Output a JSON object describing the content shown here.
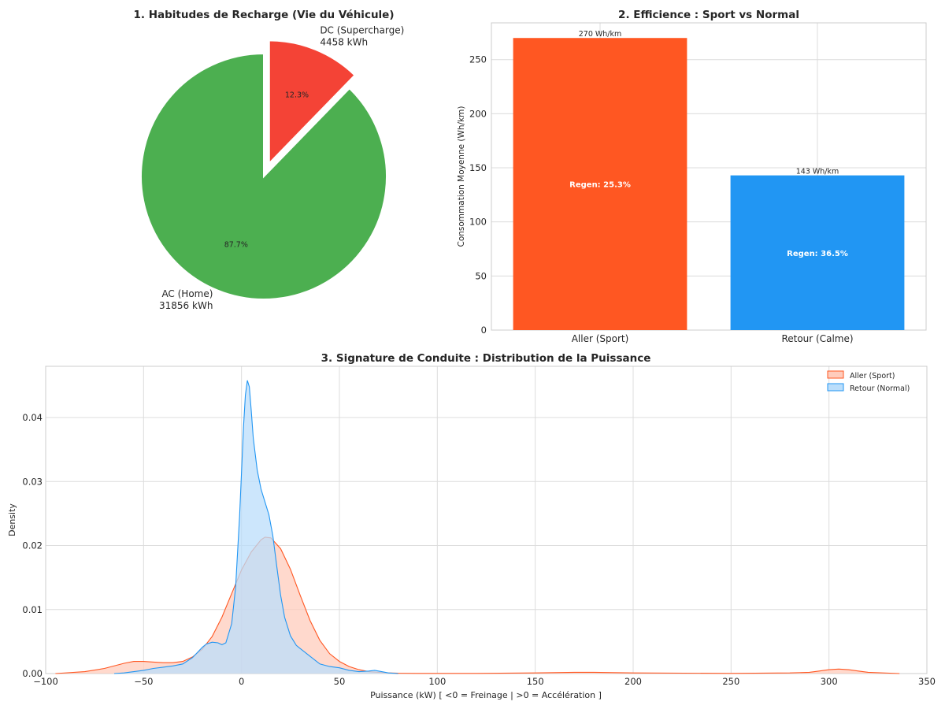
{
  "chart_data": [
    {
      "type": "pie",
      "title": "1. Habitudes de Recharge (Vie du Véhicule)",
      "slices": [
        {
          "label": "DC (Supercharge)",
          "value_label": "4458 kWh",
          "value": 4458,
          "pct_label": "12.3%",
          "color": "#f44336",
          "exploded": true
        },
        {
          "label": "AC (Home)",
          "value_label": "31856 kWh",
          "value": 31856,
          "pct_label": "87.7%",
          "color": "#4caf50",
          "exploded": false
        }
      ]
    },
    {
      "type": "bar",
      "title": "2. Efficience : Sport vs Normal",
      "ylabel": "Consommation Moyenne (Wh/km)",
      "xlabel": "",
      "ylim": [
        0,
        284
      ],
      "yticks": [
        0,
        50,
        100,
        150,
        200,
        250
      ],
      "categories": [
        "Aller (Sport)",
        "Retour (Calme)"
      ],
      "values": [
        270,
        143
      ],
      "colors": [
        "#ff5722",
        "#2196f3"
      ],
      "top_labels": [
        "270 Wh/km",
        "143 Wh/km"
      ],
      "inner_labels": [
        "Regen: 25.3%",
        "Regen: 36.5%"
      ]
    },
    {
      "type": "area",
      "title": "3. Signature de Conduite : Distribution de la Puissance",
      "xlabel": "Puissance (kW) [ <0 = Freinage | >0 = Accélération ]",
      "ylabel": "Density",
      "xlim": [
        -100,
        350
      ],
      "ylim": [
        0,
        0.048
      ],
      "xticks": [
        -100,
        -50,
        0,
        50,
        100,
        150,
        200,
        250,
        300,
        350
      ],
      "xtick_labels": [
        "−100",
        "−50",
        "0",
        "50",
        "100",
        "150",
        "200",
        "250",
        "300",
        "350"
      ],
      "yticks": [
        0,
        0.01,
        0.02,
        0.03,
        0.04
      ],
      "ytick_labels": [
        "0.00",
        "0.01",
        "0.02",
        "0.03",
        "0.04"
      ],
      "legend_position": "top-right",
      "series": [
        {
          "name": "Aller (Sport)",
          "color": "#ff5722",
          "fill": "#ffccbc",
          "x": [
            -95,
            -80,
            -70,
            -60,
            -55,
            -50,
            -45,
            -40,
            -35,
            -30,
            -25,
            -20,
            -15,
            -10,
            -5,
            0,
            5,
            10,
            12,
            15,
            20,
            25,
            30,
            35,
            40,
            45,
            50,
            55,
            60,
            65,
            70,
            75,
            80,
            90,
            100,
            120,
            150,
            170,
            180,
            200,
            250,
            280,
            290,
            295,
            300,
            305,
            310,
            315,
            320,
            336
          ],
          "y": [
            0,
            0.0003,
            0.0008,
            0.0016,
            0.0019,
            0.0019,
            0.0018,
            0.0017,
            0.0017,
            0.0019,
            0.0026,
            0.0038,
            0.0058,
            0.0088,
            0.0125,
            0.0162,
            0.019,
            0.0209,
            0.0213,
            0.0212,
            0.0195,
            0.0163,
            0.0122,
            0.0083,
            0.0052,
            0.0031,
            0.0019,
            0.0011,
            0.0006,
            0.0003,
            0.0002,
            0.0001,
            5e-05,
            2e-05,
            2e-05,
            3e-05,
            0.0001,
            0.0002,
            0.0002,
            0.0001,
            3e-05,
            0.0001,
            0.0002,
            0.0004,
            0.0006,
            0.0007,
            0.0006,
            0.0004,
            0.0002,
            0
          ]
        },
        {
          "name": "Retour (Normal)",
          "color": "#2196f3",
          "fill": "#bbdefb",
          "x": [
            -65,
            -60,
            -55,
            -50,
            -45,
            -40,
            -35,
            -30,
            -25,
            -20,
            -18,
            -15,
            -12,
            -10,
            -8,
            -5,
            -3,
            -1,
            0,
            1,
            2,
            3,
            4,
            5,
            6,
            8,
            10,
            12,
            14,
            16,
            18,
            20,
            22,
            25,
            28,
            30,
            35,
            40,
            45,
            50,
            55,
            60,
            65,
            68,
            70,
            75,
            80
          ],
          "y": [
            0,
            0.0001,
            0.0003,
            0.0005,
            0.0008,
            0.001,
            0.0012,
            0.0015,
            0.0025,
            0.0041,
            0.0046,
            0.0049,
            0.0048,
            0.0045,
            0.0048,
            0.0078,
            0.0135,
            0.0245,
            0.0315,
            0.0385,
            0.0435,
            0.0458,
            0.0448,
            0.041,
            0.0368,
            0.0318,
            0.0288,
            0.0268,
            0.0248,
            0.0215,
            0.0168,
            0.0122,
            0.0088,
            0.0059,
            0.0044,
            0.0039,
            0.0027,
            0.0015,
            0.0011,
            0.0009,
            0.0005,
            0.0003,
            0.0004,
            0.0005,
            0.0004,
            0.0001,
            0
          ]
        }
      ]
    }
  ]
}
